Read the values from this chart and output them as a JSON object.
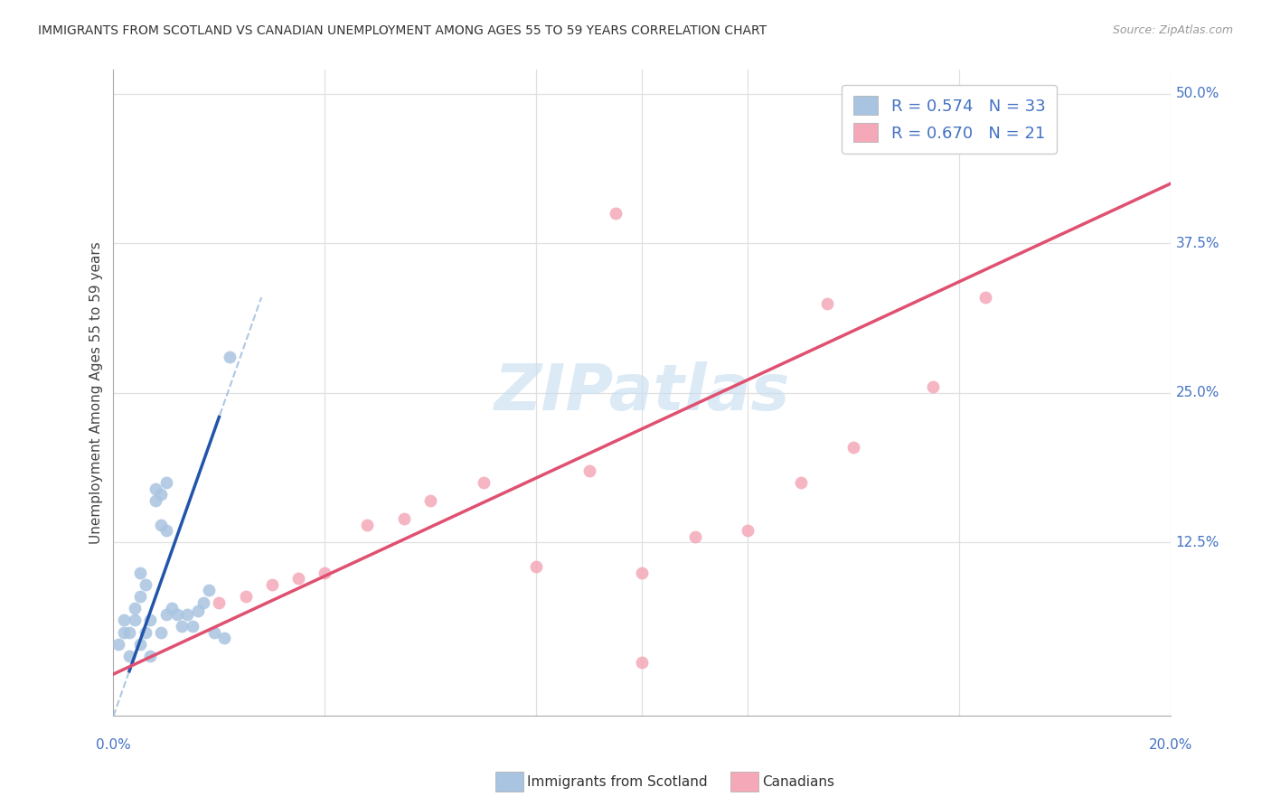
{
  "title": "IMMIGRANTS FROM SCOTLAND VS CANADIAN UNEMPLOYMENT AMONG AGES 55 TO 59 YEARS CORRELATION CHART",
  "source": "Source: ZipAtlas.com",
  "ylabel": "Unemployment Among Ages 55 to 59 years",
  "legend1_r": "0.574",
  "legend1_n": "33",
  "legend2_r": "0.670",
  "legend2_n": "21",
  "legend1_label": "Immigrants from Scotland",
  "legend2_label": "Canadians",
  "color_scotland_fill": "#a8c4e0",
  "color_canadian_fill": "#f4a8b8",
  "color_line_scotland_solid": "#2255aa",
  "color_line_scotland_dash": "#99bbdd",
  "color_line_canadian": "#e05070",
  "color_text_blue": "#4472c4",
  "color_grid": "#e0e0e0",
  "xlim": [
    0.0,
    0.2
  ],
  "ylim": [
    -0.02,
    0.52
  ],
  "ytick_positions": [
    0.0,
    0.125,
    0.25,
    0.375,
    0.5
  ],
  "ytick_labels": [
    "",
    "12.5%",
    "25.0%",
    "37.5%",
    "50.0%"
  ],
  "scotland_x": [
    0.001,
    0.002,
    0.002,
    0.003,
    0.003,
    0.004,
    0.004,
    0.005,
    0.005,
    0.005,
    0.006,
    0.006,
    0.007,
    0.007,
    0.008,
    0.009,
    0.009,
    0.01,
    0.01,
    0.011,
    0.012,
    0.013,
    0.014,
    0.015,
    0.016,
    0.017,
    0.018,
    0.019,
    0.021,
    0.008,
    0.009,
    0.01,
    0.022
  ],
  "scotland_y": [
    0.04,
    0.05,
    0.06,
    0.03,
    0.05,
    0.06,
    0.07,
    0.04,
    0.08,
    0.1,
    0.05,
    0.09,
    0.03,
    0.06,
    0.16,
    0.05,
    0.14,
    0.065,
    0.135,
    0.07,
    0.065,
    0.055,
    0.065,
    0.055,
    0.068,
    0.075,
    0.085,
    0.05,
    0.045,
    0.17,
    0.165,
    0.175,
    0.28
  ],
  "canadian_x": [
    0.02,
    0.025,
    0.03,
    0.035,
    0.04,
    0.048,
    0.055,
    0.06,
    0.07,
    0.08,
    0.09,
    0.095,
    0.1,
    0.11,
    0.12,
    0.13,
    0.14,
    0.155,
    0.165,
    0.1,
    0.135
  ],
  "canadian_y": [
    0.075,
    0.08,
    0.09,
    0.095,
    0.1,
    0.14,
    0.145,
    0.16,
    0.175,
    0.105,
    0.185,
    0.4,
    0.1,
    0.13,
    0.135,
    0.175,
    0.205,
    0.255,
    0.33,
    0.025,
    0.325
  ],
  "slope_scotland": 12.5,
  "intercept_scotland": -0.02,
  "slope_canadian": 2.05,
  "intercept_canadian": 0.015,
  "scatter_size": 100,
  "scatter_alpha": 0.85,
  "watermark_text": "ZIPatlas",
  "watermark_color": "#c8dff0"
}
